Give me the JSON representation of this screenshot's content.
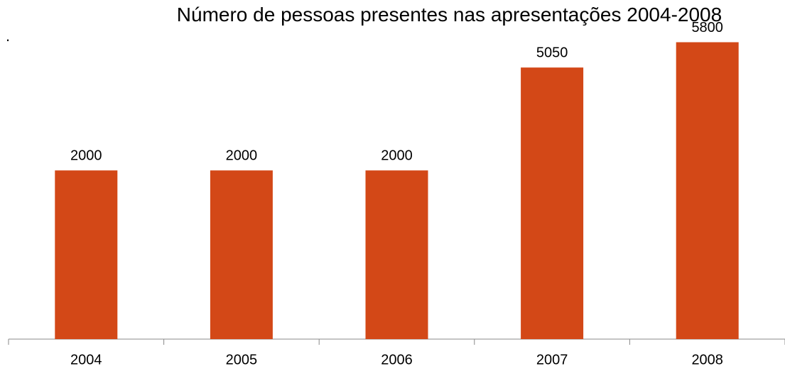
{
  "chart_data": {
    "type": "bar",
    "title": "Número de pessoas presentes nas apresentações 2004-2008",
    "annotation": ".",
    "categories": [
      "2004",
      "2005",
      "2006",
      "2007",
      "2008"
    ],
    "values": [
      2000,
      2000,
      2000,
      5050,
      5800
    ],
    "color": "#d34817",
    "ylim": [
      -3000,
      6000
    ],
    "grid": false
  }
}
